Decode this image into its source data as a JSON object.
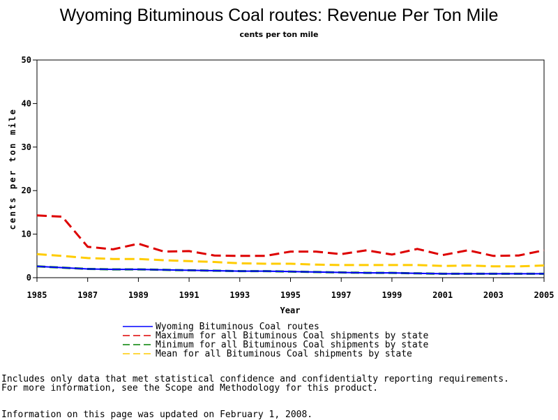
{
  "chart_data": {
    "type": "line",
    "title": "Wyoming Bituminous Coal routes: Revenue Per Ton Mile",
    "subtitle": "cents per ton mile",
    "xlabel": "Year",
    "ylabel": "cents per ton mile",
    "xlim": [
      1985,
      2005
    ],
    "ylim": [
      0,
      50
    ],
    "x_ticks": [
      "1985",
      "1987",
      "1989",
      "1991",
      "1993",
      "1995",
      "1997",
      "1999",
      "2001",
      "2003",
      "2005"
    ],
    "y_ticks": [
      "0",
      "10",
      "20",
      "30",
      "40",
      "50"
    ],
    "grid": false,
    "legend_position": "bottom",
    "x": [
      1985,
      1986,
      1987,
      1988,
      1989,
      1990,
      1991,
      1992,
      1993,
      1994,
      1995,
      1996,
      1997,
      1998,
      1999,
      2000,
      2001,
      2002,
      2003,
      2004,
      2005
    ],
    "series": [
      {
        "name": "Wyoming Bituminous Coal routes",
        "color": "#0000ff",
        "style": "solid",
        "values": [
          2.6,
          2.3,
          2.0,
          1.9,
          1.9,
          1.8,
          1.7,
          1.6,
          1.5,
          1.5,
          1.4,
          1.3,
          1.2,
          1.1,
          1.1,
          1.0,
          0.9,
          0.9,
          0.9,
          0.9,
          0.9
        ]
      },
      {
        "name": "Maximum for all Bituminous Coal shipments by state",
        "color": "#dd0000",
        "style": "dashed",
        "values": [
          14.3,
          14.0,
          7.1,
          6.5,
          7.8,
          6.0,
          6.1,
          5.1,
          5.0,
          5.0,
          6.0,
          6.0,
          5.4,
          6.3,
          5.3,
          6.6,
          5.2,
          6.3,
          5.0,
          5.1,
          6.3
        ]
      },
      {
        "name": "Minimum for all Bituminous Coal shipments by state",
        "color": "#008000",
        "style": "dashed",
        "values": [
          2.6,
          2.3,
          2.0,
          1.9,
          1.9,
          1.8,
          1.7,
          1.6,
          1.5,
          1.5,
          1.4,
          1.3,
          1.2,
          1.1,
          1.1,
          1.0,
          0.9,
          0.9,
          0.9,
          0.9,
          0.9
        ]
      },
      {
        "name": "Mean for all Bituminous Coal shipments by state",
        "color": "#ffcc00",
        "style": "dashed",
        "values": [
          5.4,
          5.0,
          4.5,
          4.3,
          4.3,
          4.0,
          3.8,
          3.6,
          3.3,
          3.2,
          3.2,
          3.0,
          2.9,
          2.9,
          2.9,
          2.9,
          2.7,
          2.8,
          2.6,
          2.6,
          2.8
        ]
      }
    ]
  },
  "footer": {
    "note_line1": "Includes only data that met statistical confidence and confidentialty reporting requirements.",
    "note_line2": "For more information, see the Scope and Methodology for this product.",
    "updated": "Information on this page was updated on February 1, 2008."
  }
}
